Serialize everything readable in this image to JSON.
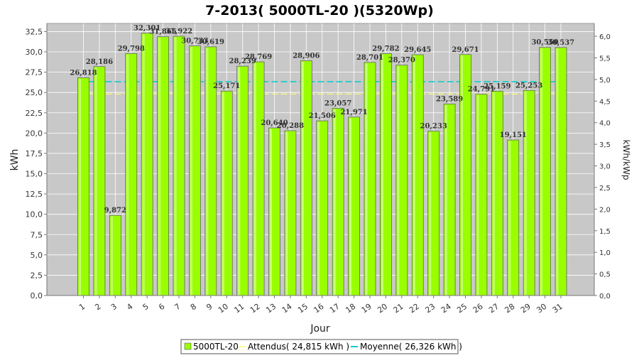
{
  "chart_data": {
    "type": "bar",
    "title": "7-2013( 5000TL-20 )(5320Wp)",
    "xlabel": "Jour",
    "ylabel": "kWh",
    "y2label": "kWh/kWp",
    "ylim": [
      0,
      33.5
    ],
    "y2lim": [
      0,
      6.2969
    ],
    "yticks": [
      "0,0",
      "2,5",
      "5,0",
      "7,5",
      "10,0",
      "12,5",
      "15,0",
      "17,5",
      "20,0",
      "22,5",
      "25,0",
      "27,5",
      "30,0",
      "32,5"
    ],
    "ytick_values": [
      0,
      2.5,
      5,
      7.5,
      10,
      12.5,
      15,
      17.5,
      20,
      22.5,
      25,
      27.5,
      30,
      32.5
    ],
    "y2ticks": [
      "0,0",
      "0,5",
      "1,0",
      "1,5",
      "2,0",
      "2,5",
      "3,0",
      "3,5",
      "4,0",
      "4,5",
      "5,0",
      "5,5",
      "6,0"
    ],
    "y2tick_values": [
      0,
      0.5,
      1,
      1.5,
      2,
      2.5,
      3,
      3.5,
      4,
      4.5,
      5,
      5.5,
      6
    ],
    "categories": [
      "1",
      "2",
      "3",
      "4",
      "5",
      "6",
      "7",
      "8",
      "9",
      "10",
      "11",
      "12",
      "13",
      "14",
      "15",
      "16",
      "17",
      "18",
      "19",
      "20",
      "21",
      "22",
      "23",
      "24",
      "25",
      "26",
      "27",
      "28",
      "29",
      "30",
      "31"
    ],
    "series": [
      {
        "name": "5000TL-20",
        "values": [
          26.818,
          28.186,
          9.872,
          29.798,
          32.301,
          31.865,
          31.922,
          30.733,
          30.619,
          25.171,
          28.239,
          28.769,
          20.64,
          20.288,
          28.906,
          21.506,
          23.057,
          21.971,
          28.701,
          29.782,
          28.37,
          29.645,
          20.233,
          23.589,
          29.671,
          24.791,
          25.159,
          19.151,
          25.253,
          30.55,
          30.537
        ],
        "labels": [
          "26,818",
          "28,186",
          "9,872",
          "29,798",
          "32,301",
          "31,865",
          "31,922",
          "30,733",
          "30,619",
          "25,171",
          "28,239",
          "28,769",
          "20,640",
          "20,288",
          "28,906",
          "21,506",
          "23,057",
          "21,971",
          "28,701",
          "29,782",
          "28,370",
          "29,645",
          "20,233",
          "23,589",
          "29,671",
          "24,791",
          "25,159",
          "19,151",
          "25,253",
          "30,550",
          "30,537"
        ],
        "color": "#99ff00"
      }
    ],
    "reference_lines": [
      {
        "name": "Attendus( 24,815 kWh )",
        "value": 24.815,
        "color": "#ffff66"
      },
      {
        "name": "Moyenne( 26,326 kWh )",
        "value": 26.326,
        "color": "#00cccc"
      }
    ],
    "grid": true,
    "legend": "bottom"
  }
}
